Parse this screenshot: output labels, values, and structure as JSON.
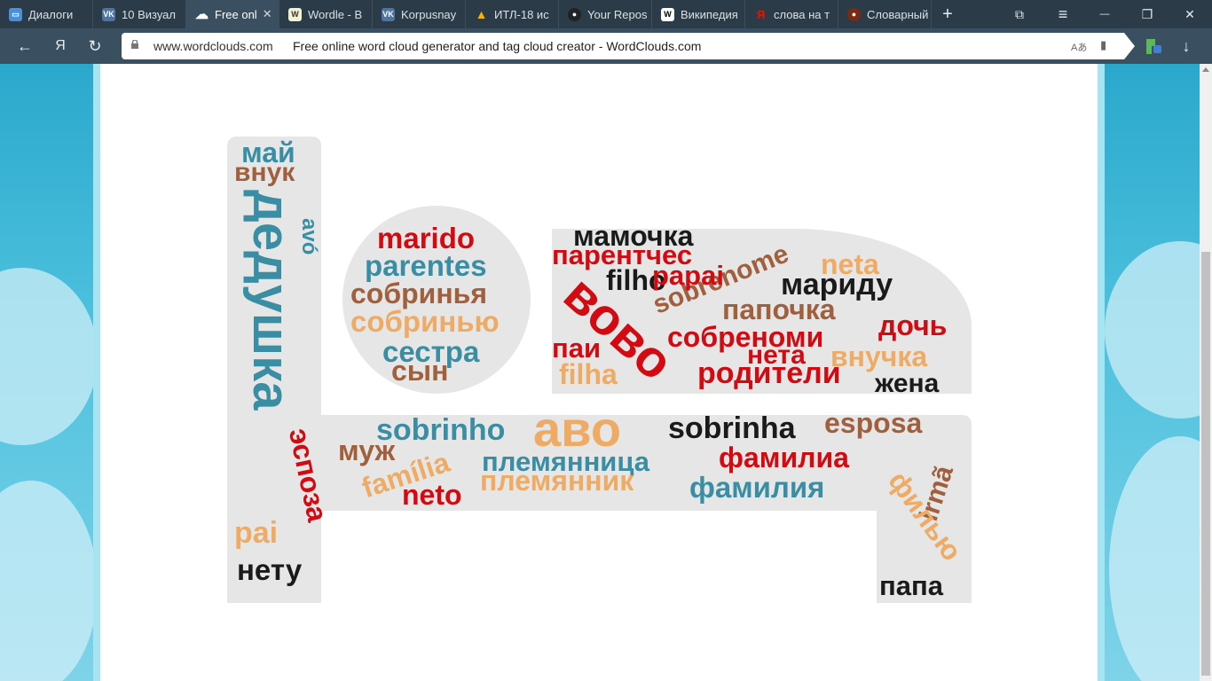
{
  "tabs": [
    {
      "label": "Диалоги",
      "icon": "chat-icon"
    },
    {
      "label": "10 Визуал",
      "icon": "vk-icon"
    },
    {
      "label": "Free onl",
      "icon": "cloud-icon",
      "active": true
    },
    {
      "label": "Wordle - В",
      "icon": "wordle-icon"
    },
    {
      "label": "Korpusnay",
      "icon": "vk-icon"
    },
    {
      "label": "ИТЛ-18 ис",
      "icon": "google-drive-icon"
    },
    {
      "label": "Your Repos",
      "icon": "github-icon"
    },
    {
      "label": "Википедия",
      "icon": "wikipedia-icon"
    },
    {
      "label": "слова на т",
      "icon": "yandex-icon"
    },
    {
      "label": "Словарный",
      "icon": "dictionary-icon"
    }
  ],
  "address_bar": {
    "domain": "www.wordclouds.com",
    "page_title": "Free online word cloud generator and tag cloud creator - WordClouds.com"
  },
  "glyphs": {
    "close": "✕",
    "new_tab": "+",
    "bookmarks": "⧉",
    "menu": "≡",
    "minimize": "—",
    "restore": "❐",
    "back": "←",
    "yandex": "Я",
    "reload": "↻",
    "translate": "Aあ",
    "bookmark": "▮",
    "download": "↓"
  },
  "word_cloud": {
    "words": [
      {
        "text": "май",
        "color": "teal"
      },
      {
        "text": "внук",
        "color": "brown"
      },
      {
        "text": "дедушка",
        "color": "teal"
      },
      {
        "text": "avó",
        "color": "teal"
      },
      {
        "text": "marido",
        "color": "red"
      },
      {
        "text": "parentes",
        "color": "teal"
      },
      {
        "text": "собринья",
        "color": "brown"
      },
      {
        "text": "собринью",
        "color": "orange"
      },
      {
        "text": "сестра",
        "color": "teal"
      },
      {
        "text": "сын",
        "color": "brown"
      },
      {
        "text": "мамочка",
        "color": "black"
      },
      {
        "text": "парентчес",
        "color": "red"
      },
      {
        "text": "sobrenome",
        "color": "brown"
      },
      {
        "text": "neta",
        "color": "orange"
      },
      {
        "text": "filho",
        "color": "black"
      },
      {
        "text": "мариду",
        "color": "black"
      },
      {
        "text": "papai",
        "color": "red"
      },
      {
        "text": "папочка",
        "color": "brown"
      },
      {
        "text": "дочь",
        "color": "red"
      },
      {
        "text": "вово",
        "color": "red"
      },
      {
        "text": "собреноми",
        "color": "red"
      },
      {
        "text": "паи",
        "color": "red"
      },
      {
        "text": "нета",
        "color": "red"
      },
      {
        "text": "внучка",
        "color": "orange"
      },
      {
        "text": "filha",
        "color": "orange"
      },
      {
        "text": "родители",
        "color": "red"
      },
      {
        "text": "жена",
        "color": "black"
      },
      {
        "text": "sobrinho",
        "color": "teal"
      },
      {
        "text": "аво",
        "color": "orange"
      },
      {
        "text": "sobrinha",
        "color": "black"
      },
      {
        "text": "esposa",
        "color": "brown"
      },
      {
        "text": "эспоза",
        "color": "red"
      },
      {
        "text": "муж",
        "color": "brown"
      },
      {
        "text": "família",
        "color": "orange"
      },
      {
        "text": "племянница",
        "color": "teal"
      },
      {
        "text": "фамилиа",
        "color": "red"
      },
      {
        "text": "irmã",
        "color": "brown"
      },
      {
        "text": "neto",
        "color": "red"
      },
      {
        "text": "племянник",
        "color": "orange"
      },
      {
        "text": "фамилия",
        "color": "teal"
      },
      {
        "text": "филью",
        "color": "orange"
      },
      {
        "text": "pai",
        "color": "orange"
      },
      {
        "text": "нету",
        "color": "black"
      },
      {
        "text": "папа",
        "color": "black"
      }
    ],
    "colors": {
      "red": "#d20a11",
      "teal": "#3a8ea3",
      "brown": "#a0603d",
      "orange": "#eeab65",
      "black": "#1a1a1a",
      "shape": "#e6e6e6"
    }
  }
}
